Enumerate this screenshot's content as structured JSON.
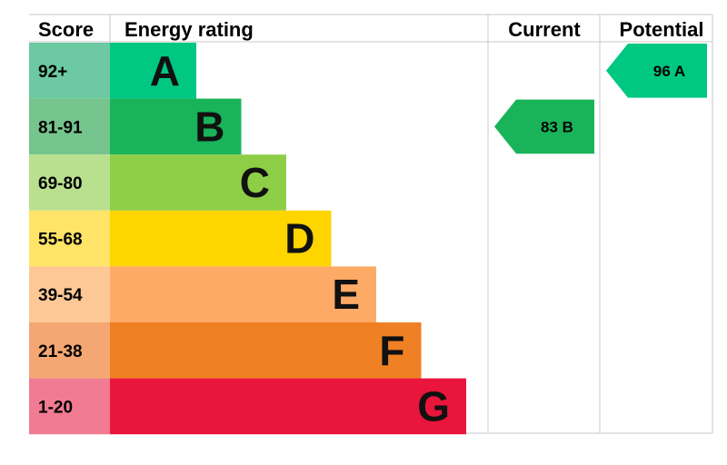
{
  "chart_data": {
    "type": "bar",
    "title": "",
    "headers": {
      "score": "Score",
      "rating": "Energy rating",
      "current": "Current",
      "potential": "Potential"
    },
    "bands": [
      {
        "score": "92+",
        "letter": "A",
        "min": 92,
        "max": 100,
        "color": "#00c781",
        "score_bg": "#6cc9a2"
      },
      {
        "score": "81-91",
        "letter": "B",
        "min": 81,
        "max": 91,
        "color": "#19b459",
        "score_bg": "#76c48e"
      },
      {
        "score": "69-80",
        "letter": "C",
        "min": 69,
        "max": 80,
        "color": "#8dce46",
        "score_bg": "#b9e08f"
      },
      {
        "score": "55-68",
        "letter": "D",
        "min": 55,
        "max": 68,
        "color": "#ffd500",
        "score_bg": "#ffe468"
      },
      {
        "score": "39-54",
        "letter": "E",
        "min": 39,
        "max": 54,
        "color": "#fcaa65",
        "score_bg": "#fdc896"
      },
      {
        "score": "21-38",
        "letter": "F",
        "min": 21,
        "max": 38,
        "color": "#ef8023",
        "score_bg": "#f4a772"
      },
      {
        "score": "1-20",
        "letter": "G",
        "min": 1,
        "max": 20,
        "color": "#e9153b",
        "score_bg": "#f07b92"
      }
    ],
    "current": {
      "value": 83,
      "letter": "B",
      "label": "83  B",
      "color": "#19b459"
    },
    "potential": {
      "value": 96,
      "letter": "A",
      "label": "96  A",
      "color": "#00c781"
    }
  }
}
